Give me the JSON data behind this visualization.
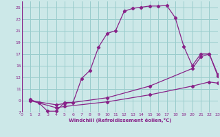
{
  "xlabel": "Windchill (Refroidissement éolien,°C)",
  "bg_color": "#cce8e8",
  "grid_color": "#99cccc",
  "line_color": "#882288",
  "xmin": 0,
  "xmax": 23,
  "ymin": 7,
  "ymax": 26,
  "yticks": [
    7,
    9,
    11,
    13,
    15,
    17,
    19,
    21,
    23,
    25
  ],
  "xticks": [
    0,
    1,
    2,
    3,
    4,
    5,
    6,
    7,
    8,
    9,
    10,
    11,
    12,
    13,
    14,
    15,
    16,
    17,
    18,
    19,
    20,
    21,
    22,
    23
  ],
  "curve1_x": [
    1,
    2,
    3,
    4,
    5,
    6,
    7,
    8,
    9,
    10,
    11,
    12,
    13,
    14,
    15,
    16,
    17,
    18,
    19,
    20,
    21,
    22,
    23
  ],
  "curve1_y": [
    9.2,
    8.6,
    7.2,
    7.2,
    8.7,
    8.7,
    12.8,
    14.2,
    18.2,
    20.5,
    21.0,
    24.3,
    24.8,
    25.0,
    25.2,
    25.2,
    25.3,
    23.2,
    18.3,
    15.0,
    17.0,
    17.0,
    13.5
  ],
  "curve2_x": [
    1,
    4,
    5,
    10,
    15,
    20,
    21,
    22,
    23
  ],
  "curve2_y": [
    9.0,
    8.3,
    8.5,
    9.5,
    11.5,
    14.5,
    16.5,
    17.0,
    13.2
  ],
  "curve3_x": [
    1,
    4,
    5,
    10,
    15,
    20,
    22,
    23
  ],
  "curve3_y": [
    9.0,
    7.8,
    8.0,
    8.8,
    10.0,
    11.5,
    12.2,
    12.0
  ]
}
